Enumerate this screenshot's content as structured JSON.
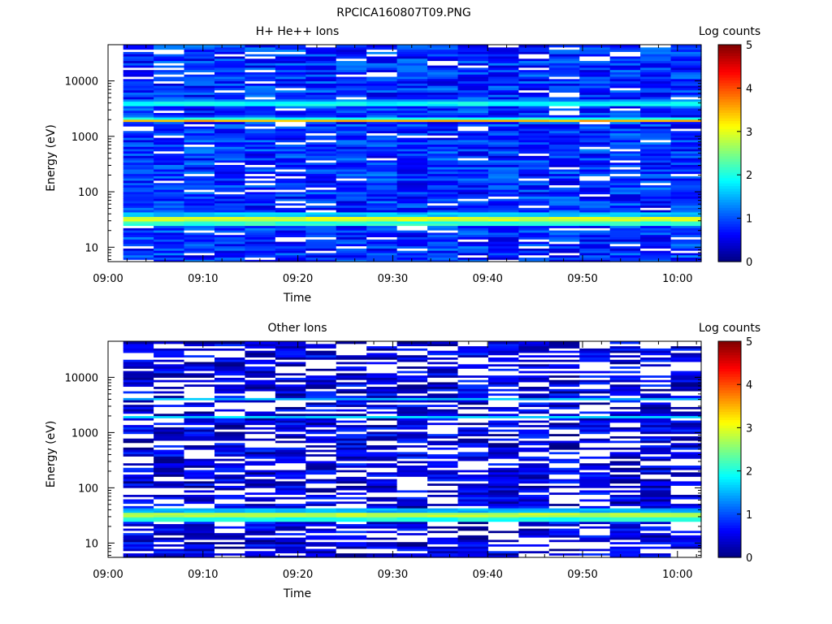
{
  "figure_title": "RPCICA160807T09.PNG",
  "colors": {
    "background": "#ffffff",
    "axis": "#000000",
    "empty_bin": "#ffffff",
    "colormap": [
      "#00007f",
      "#0000ff",
      "#007fff",
      "#00ffff",
      "#7fff7f",
      "#ffff00",
      "#ff7f00",
      "#ff0000",
      "#7f0000"
    ]
  },
  "chart_data": [
    {
      "type": "heatmap",
      "title": "H+ He++ Ions",
      "xlabel": "Time",
      "ylabel": "Energy (eV)",
      "x_ticks": [
        "09:00",
        "09:10",
        "09:20",
        "09:30",
        "09:40",
        "09:50",
        "10:00"
      ],
      "x_tick_minutes": [
        0,
        10,
        20,
        30,
        40,
        50,
        60
      ],
      "xlim_minutes": [
        0,
        62.5
      ],
      "data_start_minute": 1.6,
      "time_bins": 19,
      "y_scale": "log",
      "ylim": [
        5.5,
        45000
      ],
      "y_ticks": [
        10,
        100,
        1000,
        10000
      ],
      "y_tick_labels": [
        "10",
        "100",
        "1000",
        "10000"
      ],
      "energy_bins": 96,
      "colorbar": {
        "label": "Log counts",
        "range": [
          0,
          5
        ],
        "ticks": [
          "0",
          "1",
          "2",
          "3",
          "4",
          "5"
        ]
      },
      "bands": [
        {
          "energy_ev": 32,
          "log_counts": 2.9,
          "width": 0.045
        },
        {
          "energy_ev": 27,
          "log_counts": 2.1,
          "width": 0.035
        },
        {
          "energy_ev": 40,
          "log_counts": 1.6,
          "width": 0.03
        },
        {
          "energy_ev": 1950,
          "log_counts": 3.5,
          "width": 0.018
        },
        {
          "energy_ev": 2150,
          "log_counts": 1.9,
          "width": 0.018
        },
        {
          "energy_ev": 3900,
          "log_counts": 1.9,
          "width": 0.03
        },
        {
          "energy_ev": 4700,
          "log_counts": 1.3,
          "width": 0.02
        }
      ],
      "background_log_counts": 0.85,
      "empty_fraction": 0.08
    },
    {
      "type": "heatmap",
      "title": "Other Ions",
      "xlabel": "Time",
      "ylabel": "Energy (eV)",
      "x_ticks": [
        "09:00",
        "09:10",
        "09:20",
        "09:30",
        "09:40",
        "09:50",
        "10:00"
      ],
      "x_tick_minutes": [
        0,
        10,
        20,
        30,
        40,
        50,
        60
      ],
      "xlim_minutes": [
        0,
        62.5
      ],
      "data_start_minute": 1.6,
      "time_bins": 19,
      "y_scale": "log",
      "ylim": [
        5.5,
        45000
      ],
      "y_ticks": [
        10,
        100,
        1000,
        10000
      ],
      "y_tick_labels": [
        "10",
        "100",
        "1000",
        "10000"
      ],
      "energy_bins": 96,
      "colorbar": {
        "label": "Log counts",
        "range": [
          0,
          5
        ],
        "ticks": [
          "0",
          "1",
          "2",
          "3",
          "4",
          "5"
        ]
      },
      "bands": [
        {
          "energy_ev": 32,
          "log_counts": 2.8,
          "width": 0.045
        },
        {
          "energy_ev": 27,
          "log_counts": 2.0,
          "width": 0.035
        },
        {
          "energy_ev": 40,
          "log_counts": 1.5,
          "width": 0.03
        },
        {
          "energy_ev": 1950,
          "log_counts": 1.7,
          "width": 0.02
        },
        {
          "energy_ev": 4200,
          "log_counts": 1.5,
          "width": 0.025
        }
      ],
      "background_log_counts": 0.45,
      "empty_fraction": 0.35
    }
  ]
}
